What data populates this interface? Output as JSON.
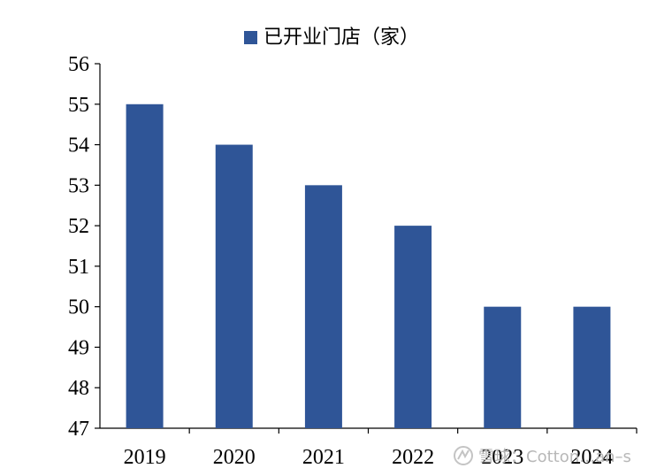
{
  "chart_data": {
    "type": "bar",
    "categories": [
      "2019",
      "2020",
      "2021",
      "2022",
      "2023",
      "2024"
    ],
    "series": [
      {
        "name": "已开业门店（家）",
        "values": [
          55,
          54,
          53,
          52,
          50,
          50
        ]
      }
    ],
    "title": "",
    "xlabel": "",
    "ylabel": "",
    "ylim": [
      47,
      56
    ],
    "yticks": [
      "47",
      "48",
      "49",
      "50",
      "51",
      "52",
      "53",
      "54",
      "55",
      "56"
    ],
    "grid": false,
    "legend_position": "top-center",
    "bar_color": "#2f5597"
  },
  "watermark": {
    "text": "雪球：Cotton…an–s"
  }
}
